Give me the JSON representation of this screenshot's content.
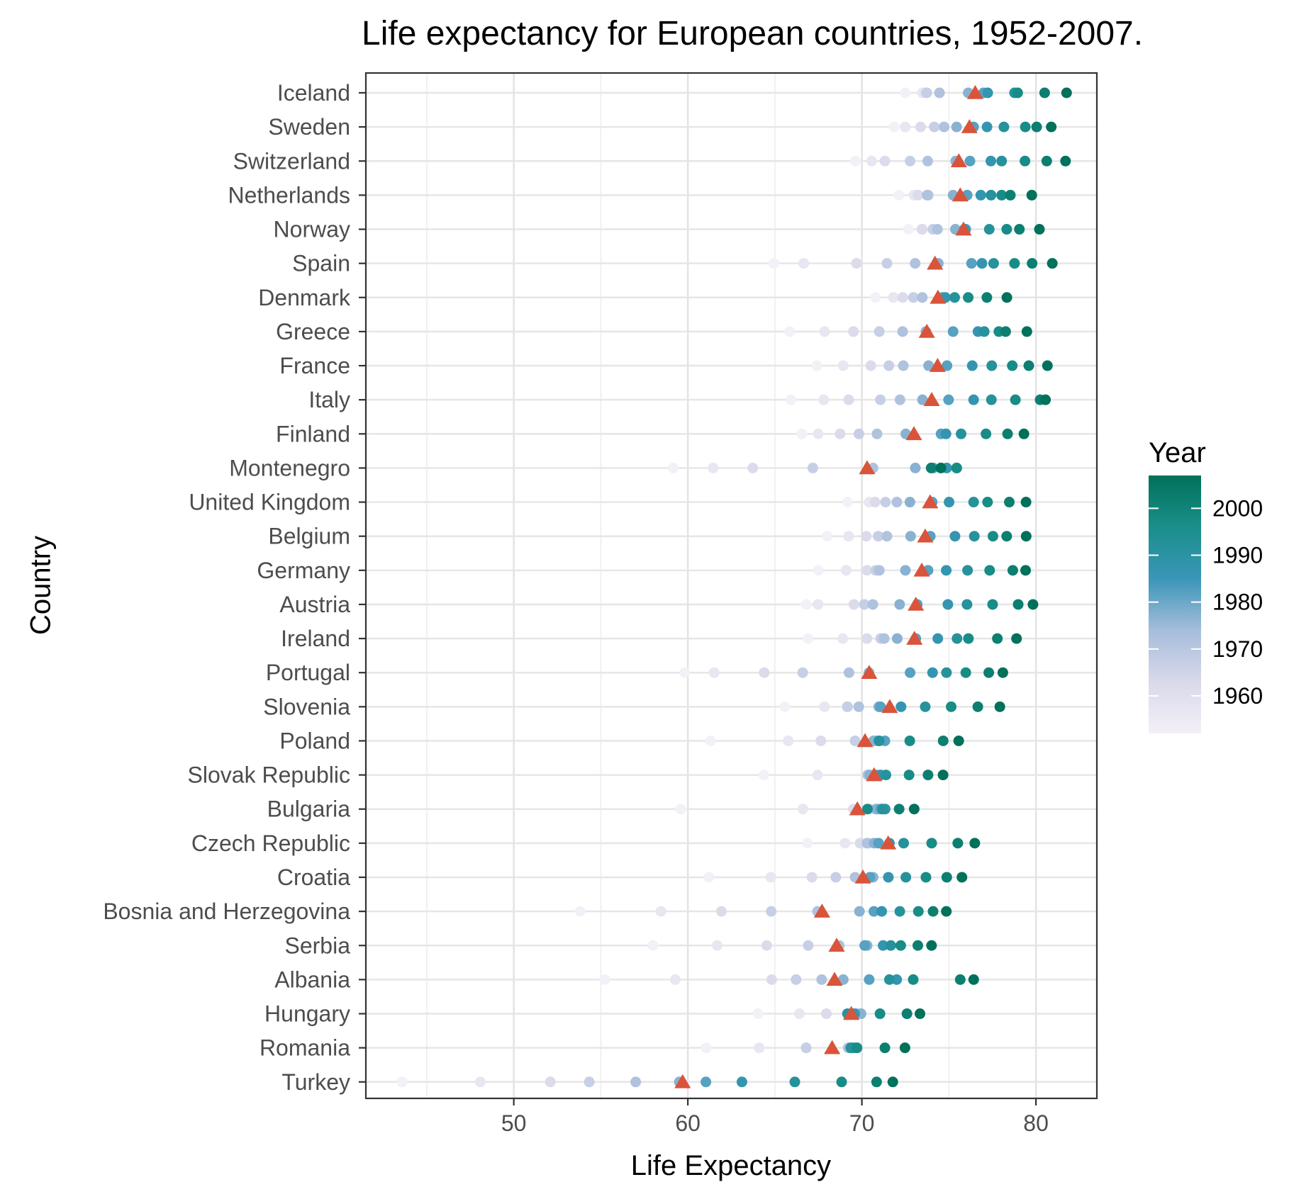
{
  "chart_data": {
    "type": "scatter",
    "title": "Life expectancy for European countries, 1952-2007.",
    "xlabel": "Life Expectancy",
    "ylabel": "Country",
    "xlim": [
      41.5,
      83.5
    ],
    "x_ticks": [
      50,
      60,
      70,
      80
    ],
    "grid": true,
    "legend": {
      "title": "Year",
      "placement": "right",
      "range": [
        1952,
        2007
      ],
      "ticks": [
        1960,
        1970,
        1980,
        1990,
        2000
      ],
      "colors": [
        "#f4f0f7",
        "#d9d9ea",
        "#a6bddb",
        "#3a96b8",
        "#1a8f8a",
        "#00715a"
      ]
    },
    "mean_marker_color": "#d9543a",
    "years": [
      1952,
      1957,
      1962,
      1967,
      1972,
      1977,
      1982,
      1987,
      1992,
      1997,
      2002,
      2007
    ],
    "countries": [
      {
        "name": "Iceland",
        "values": [
          72.49,
          73.47,
          73.68,
          73.73,
          74.46,
          76.11,
          76.99,
          77.23,
          78.77,
          78.95,
          80.5,
          81.76
        ],
        "mean": 76.51
      },
      {
        "name": "Sweden",
        "values": [
          71.86,
          72.49,
          73.37,
          74.16,
          74.72,
          75.44,
          76.42,
          77.19,
          78.16,
          79.39,
          80.04,
          80.88
        ],
        "mean": 76.18
      },
      {
        "name": "Switzerland",
        "values": [
          69.62,
          70.56,
          71.32,
          72.77,
          73.78,
          75.39,
          76.21,
          77.41,
          78.03,
          79.37,
          80.62,
          81.7
        ],
        "mean": 75.57
      },
      {
        "name": "Netherlands",
        "values": [
          72.13,
          72.99,
          73.23,
          73.82,
          73.75,
          75.24,
          76.05,
          76.83,
          77.42,
          78.03,
          78.53,
          79.76
        ],
        "mean": 75.65
      },
      {
        "name": "Norway",
        "values": [
          72.67,
          73.44,
          73.47,
          74.08,
          74.34,
          75.37,
          75.97,
          75.89,
          77.32,
          78.32,
          79.05,
          80.2
        ],
        "mean": 75.84
      },
      {
        "name": "Spain",
        "values": [
          64.94,
          66.66,
          69.69,
          71.44,
          73.06,
          74.39,
          76.3,
          76.9,
          77.57,
          78.77,
          79.78,
          80.94
        ],
        "mean": 74.2
      },
      {
        "name": "Denmark",
        "values": [
          70.78,
          71.81,
          72.35,
          72.96,
          73.47,
          74.69,
          74.63,
          74.8,
          75.33,
          76.11,
          77.18,
          78.33
        ],
        "mean": 74.37
      },
      {
        "name": "Greece",
        "values": [
          65.86,
          67.86,
          69.51,
          71.0,
          72.34,
          73.68,
          75.24,
          76.67,
          77.03,
          77.87,
          78.26,
          79.48
        ],
        "mean": 73.73
      },
      {
        "name": "France",
        "values": [
          67.41,
          68.93,
          70.51,
          71.55,
          72.38,
          73.83,
          74.89,
          76.34,
          77.46,
          78.64,
          79.59,
          80.66
        ],
        "mean": 74.35
      },
      {
        "name": "Italy",
        "values": [
          65.94,
          67.81,
          69.24,
          71.06,
          72.19,
          73.48,
          74.98,
          76.42,
          77.44,
          78.82,
          80.24,
          80.55
        ],
        "mean": 74.01
      },
      {
        "name": "Finland",
        "values": [
          66.55,
          67.49,
          68.75,
          69.83,
          70.87,
          72.52,
          74.55,
          74.83,
          75.7,
          77.13,
          78.37,
          79.31
        ],
        "mean": 72.99
      },
      {
        "name": "Montenegro",
        "values": [
          59.16,
          61.45,
          63.73,
          67.18,
          70.64,
          73.07,
          74.1,
          74.87,
          75.44,
          75.45,
          73.98,
          74.54
        ],
        "mean": 70.3
      },
      {
        "name": "United Kingdom",
        "values": [
          69.18,
          70.42,
          70.76,
          71.36,
          72.01,
          72.76,
          74.04,
          75.01,
          76.42,
          77.22,
          78.47,
          79.43
        ],
        "mean": 73.92
      },
      {
        "name": "Belgium",
        "values": [
          68.0,
          69.24,
          70.25,
          70.94,
          71.44,
          72.8,
          73.93,
          75.35,
          76.46,
          77.53,
          78.32,
          79.44
        ],
        "mean": 73.64
      },
      {
        "name": "Germany",
        "values": [
          67.5,
          69.1,
          70.3,
          70.8,
          71.0,
          72.5,
          73.8,
          74.847,
          76.07,
          77.34,
          78.67,
          79.406
        ],
        "mean": 73.44
      },
      {
        "name": "Austria",
        "values": [
          66.8,
          67.48,
          69.54,
          70.14,
          70.63,
          72.17,
          73.18,
          74.94,
          76.04,
          77.51,
          78.98,
          79.829
        ],
        "mean": 73.1
      },
      {
        "name": "Ireland",
        "values": [
          66.91,
          68.9,
          70.29,
          71.08,
          71.28,
          72.03,
          73.1,
          74.36,
          75.467,
          76.122,
          77.783,
          78.885
        ],
        "mean": 73.02
      },
      {
        "name": "Portugal",
        "values": [
          59.82,
          61.51,
          64.39,
          66.6,
          69.26,
          70.41,
          72.77,
          74.06,
          74.86,
          75.97,
          77.29,
          78.098
        ],
        "mean": 70.42
      },
      {
        "name": "Slovenia",
        "values": [
          65.57,
          67.85,
          69.15,
          69.18,
          69.82,
          70.97,
          71.063,
          72.25,
          73.64,
          75.13,
          76.66,
          77.926
        ],
        "mean": 71.6
      },
      {
        "name": "Poland",
        "values": [
          61.31,
          65.77,
          67.64,
          69.61,
          70.85,
          70.67,
          71.32,
          70.98,
          70.99,
          72.75,
          74.67,
          75.563
        ],
        "mean": 70.18
      },
      {
        "name": "Slovak Republic",
        "values": [
          64.36,
          67.45,
          70.33,
          70.98,
          70.35,
          70.45,
          70.8,
          71.08,
          71.38,
          72.71,
          73.8,
          74.663
        ],
        "mean": 70.7
      },
      {
        "name": "Bulgaria",
        "values": [
          59.6,
          66.61,
          69.51,
          70.42,
          70.9,
          70.81,
          71.08,
          71.34,
          71.19,
          70.32,
          72.14,
          73.005
        ],
        "mean": 69.74
      },
      {
        "name": "Czech Republic",
        "values": [
          66.87,
          69.03,
          69.9,
          70.38,
          70.29,
          70.71,
          70.96,
          71.58,
          72.4,
          74.01,
          75.51,
          76.486
        ],
        "mean": 71.51
      },
      {
        "name": "Croatia",
        "values": [
          61.21,
          64.77,
          67.13,
          68.5,
          69.61,
          70.64,
          70.46,
          71.52,
          72.527,
          73.68,
          74.876,
          75.748
        ],
        "mean": 70.06
      },
      {
        "name": "Bosnia and Herzegovina",
        "values": [
          53.82,
          58.45,
          61.93,
          64.79,
          67.45,
          69.86,
          70.69,
          71.14,
          72.178,
          73.244,
          74.09,
          74.852
        ],
        "mean": 67.71
      },
      {
        "name": "Serbia",
        "values": [
          57.996,
          61.685,
          64.531,
          66.914,
          68.7,
          70.3,
          70.162,
          71.218,
          71.659,
          72.232,
          73.213,
          74.002
        ],
        "mean": 68.55
      },
      {
        "name": "Albania",
        "values": [
          55.23,
          59.28,
          64.82,
          66.22,
          67.69,
          68.93,
          70.42,
          72.0,
          71.581,
          72.95,
          75.651,
          76.423
        ],
        "mean": 68.43
      },
      {
        "name": "Hungary",
        "values": [
          64.03,
          66.41,
          67.96,
          69.5,
          69.76,
          69.95,
          69.39,
          69.58,
          69.17,
          71.04,
          72.59,
          73.338
        ],
        "mean": 69.39
      },
      {
        "name": "Romania",
        "values": [
          61.05,
          64.1,
          66.8,
          66.8,
          69.21,
          69.46,
          69.66,
          69.53,
          69.36,
          69.72,
          71.322,
          72.476
        ],
        "mean": 68.29
      },
      {
        "name": "Turkey",
        "values": [
          43.585,
          48.079,
          52.098,
          54.336,
          57.005,
          59.507,
          61.036,
          63.108,
          66.146,
          68.835,
          70.845,
          71.777
        ],
        "mean": 59.7
      }
    ]
  }
}
